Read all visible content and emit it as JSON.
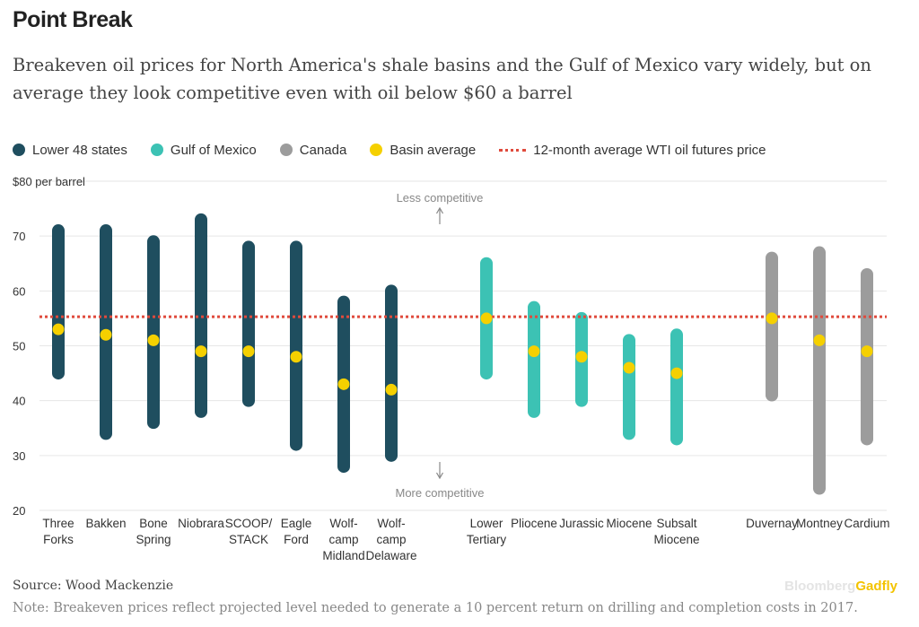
{
  "header": {
    "title": "Point Break",
    "subtitle": "Breakeven oil prices for North America's shale basins and the Gulf of Mexico vary widely, but on average they look competitive even with oil below $60 a barrel"
  },
  "legend": [
    {
      "label": "Lower 48 states",
      "kind": "dot",
      "color": "#1f4e5f"
    },
    {
      "label": "Gulf of Mexico",
      "kind": "dot",
      "color": "#3cc2b4"
    },
    {
      "label": "Canada",
      "kind": "dot",
      "color": "#9c9c9c"
    },
    {
      "label": "Basin average",
      "kind": "dot",
      "color": "#f5d000"
    },
    {
      "label": "12-month average WTI oil futures price",
      "kind": "dashed-line",
      "color": "#e04a3c"
    }
  ],
  "chart_data": {
    "type": "range",
    "ylabel": "$80 per barrel",
    "ylim": [
      20,
      80
    ],
    "yticks": [
      20,
      30,
      40,
      50,
      60,
      70,
      80
    ],
    "tick_labels": [
      "20",
      "30",
      "40",
      "50",
      "60",
      "70",
      "$80 per barrel"
    ],
    "grid": true,
    "wti_average": 55.3,
    "annotations": {
      "top": "Less competitive",
      "bottom": "More competitive"
    },
    "group_colors": {
      "Lower 48 states": "#1f4e5f",
      "Gulf of Mexico": "#3cc2b4",
      "Canada": "#9c9c9c"
    },
    "average_color": "#f5d000",
    "wti_color": "#e04a3c",
    "basins": [
      {
        "name": "Three Forks",
        "label_lines": [
          "Three",
          "Forks"
        ],
        "group": "Lower 48 states",
        "low": 45,
        "high": 71,
        "avg": 53
      },
      {
        "name": "Bakken",
        "label_lines": [
          "Bakken"
        ],
        "group": "Lower 48 states",
        "low": 34,
        "high": 71,
        "avg": 52
      },
      {
        "name": "Bone Spring",
        "label_lines": [
          "Bone",
          "Spring"
        ],
        "group": "Lower 48 states",
        "low": 36,
        "high": 69,
        "avg": 51
      },
      {
        "name": "Niobrara",
        "label_lines": [
          "Niobrara"
        ],
        "group": "Lower 48 states",
        "low": 38,
        "high": 73,
        "avg": 49
      },
      {
        "name": "SCOOP/STACK",
        "label_lines": [
          "SCOOP/",
          "STACK"
        ],
        "group": "Lower 48 states",
        "low": 40,
        "high": 68,
        "avg": 49
      },
      {
        "name": "Eagle Ford",
        "label_lines": [
          "Eagle",
          "Ford"
        ],
        "group": "Lower 48 states",
        "low": 32,
        "high": 68,
        "avg": 48
      },
      {
        "name": "Wolfcamp Midland",
        "label_lines": [
          "Wolf-",
          "camp",
          "Midland"
        ],
        "group": "Lower 48 states",
        "low": 28,
        "high": 58,
        "avg": 43
      },
      {
        "name": "Wolfcamp Delaware",
        "label_lines": [
          "Wolf-",
          "camp",
          "Delaware"
        ],
        "group": "Lower 48 states",
        "low": 30,
        "high": 60,
        "avg": 42
      },
      {
        "name": "Lower Tertiary",
        "label_lines": [
          "Lower",
          "Tertiary"
        ],
        "group": "Gulf of Mexico",
        "low": 45,
        "high": 65,
        "avg": 55
      },
      {
        "name": "Pliocene",
        "label_lines": [
          "Pliocene"
        ],
        "group": "Gulf of Mexico",
        "low": 38,
        "high": 57,
        "avg": 49
      },
      {
        "name": "Jurassic",
        "label_lines": [
          "Jurassic"
        ],
        "group": "Gulf of Mexico",
        "low": 40,
        "high": 55,
        "avg": 48
      },
      {
        "name": "Miocene",
        "label_lines": [
          "Miocene"
        ],
        "group": "Gulf of Mexico",
        "low": 34,
        "high": 51,
        "avg": 46
      },
      {
        "name": "Subsalt Miocene",
        "label_lines": [
          "Subsalt",
          "Miocene"
        ],
        "group": "Gulf of Mexico",
        "low": 33,
        "high": 52,
        "avg": 45
      },
      {
        "name": "Duvernay",
        "label_lines": [
          "Duvernay"
        ],
        "group": "Canada",
        "low": 41,
        "high": 66,
        "avg": 55
      },
      {
        "name": "Montney",
        "label_lines": [
          "Montney"
        ],
        "group": "Canada",
        "low": 24,
        "high": 67,
        "avg": 51
      },
      {
        "name": "Cardium",
        "label_lines": [
          "Cardium"
        ],
        "group": "Canada",
        "low": 33,
        "high": 63,
        "avg": 49
      }
    ]
  },
  "footer": {
    "source": "Source: Wood Mackenzie",
    "note": "Note: Breakeven prices reflect projected level needed to generate a 10 percent return on drilling and completion costs in 2017.",
    "brand_part1": "Bloomberg",
    "brand_part2": "Gadfly"
  }
}
